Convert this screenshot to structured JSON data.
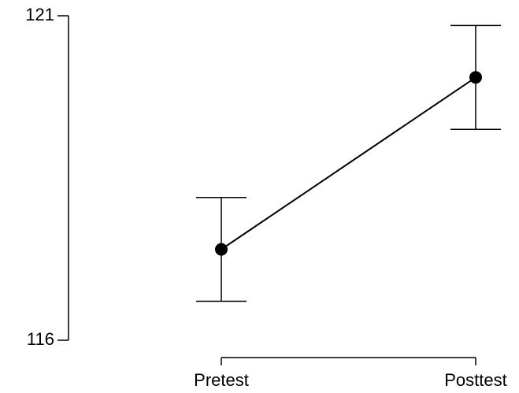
{
  "chart_data": {
    "type": "line",
    "title": "",
    "xlabel": "",
    "ylabel": "",
    "categories": [
      "Pretest",
      "Posttest"
    ],
    "ylim": [
      116,
      121
    ],
    "yticks": [
      116,
      121
    ],
    "ytick_labels": [
      "116",
      "121"
    ],
    "grid": false,
    "legend": "none",
    "series": [
      {
        "values": [
          117.4,
          120.05
        ],
        "error_low": [
          116.6,
          119.25
        ],
        "error_high": [
          118.2,
          120.85
        ]
      }
    ],
    "colors": {
      "line": "#000000",
      "marker": "#000000"
    }
  }
}
